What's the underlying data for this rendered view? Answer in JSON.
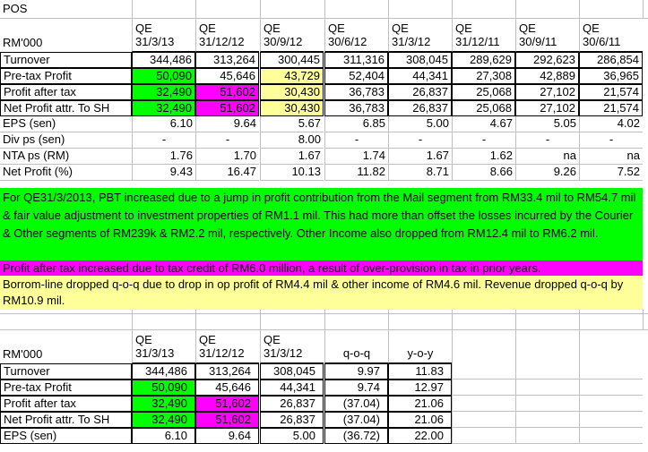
{
  "title": "POS",
  "top_table": {
    "unit_label": "RM'000",
    "columns": [
      {
        "line1": "QE",
        "line2": "31/3/13"
      },
      {
        "line1": "QE",
        "line2": "31/12/12"
      },
      {
        "line1": "QE",
        "line2": "30/9/12"
      },
      {
        "line1": "QE",
        "line2": "30/6/12"
      },
      {
        "line1": "QE",
        "line2": "31/3/12"
      },
      {
        "line1": "QE",
        "line2": "31/12/11"
      },
      {
        "line1": "QE",
        "line2": "30/9/11"
      },
      {
        "line1": "QE",
        "line2": "30/6/11"
      }
    ],
    "rows": [
      {
        "label": "Turnover",
        "values": [
          "344,486",
          "313,264",
          "300,445",
          "311,316",
          "308,045",
          "289,629",
          "292,623",
          "286,854"
        ]
      },
      {
        "label": "Pre-tax Profit",
        "values": [
          "50,090",
          "45,646",
          "43,729",
          "52,404",
          "44,341",
          "27,308",
          "42,889",
          "36,965"
        ]
      },
      {
        "label": "Profit after tax",
        "values": [
          "32,490",
          "51,602",
          "30,430",
          "36,783",
          "26,837",
          "25,068",
          "27,102",
          "21,574"
        ]
      },
      {
        "label": "Net Profit attr. To SH",
        "values": [
          "32,490",
          "51,602",
          "30,430",
          "36,783",
          "26,837",
          "25,068",
          "27,102",
          "21,574"
        ]
      },
      {
        "label": "EPS (sen)",
        "values": [
          "6.10",
          "9.64",
          "5.67",
          "6.85",
          "5.00",
          "4.67",
          "5.05",
          "4.02"
        ]
      },
      {
        "label": "Div ps (sen)",
        "values": [
          "-",
          "-",
          "8.00",
          "-",
          "-",
          "-",
          "-",
          "-"
        ]
      },
      {
        "label": "NTA ps (RM)",
        "values": [
          "1.76",
          "1.70",
          "1.67",
          "1.74",
          "1.67",
          "1.62",
          "na",
          "na"
        ]
      },
      {
        "label": "Net Profit (%)",
        "values": [
          "9.43",
          "16.47",
          "10.13",
          "11.82",
          "8.71",
          "8.66",
          "9.26",
          "7.52"
        ]
      }
    ]
  },
  "notes": {
    "green": "For QE31/3/2013, PBT increased due to a jump in profit contribution from the Mail segment from RM33.4 mil to RM54.7 mil & fair value adjustment to investment properties of RM1.1 mil. This had more than offset the losses incurred by the Courier & Other segments of RM239k & RM2.2 mil, respectively. Other Income also dropped from RM12.4 mil to RM6.2 mil.",
    "magenta": "Profit after tax increased due to tax credit of RM6.0 million, a result of over-provision in tax in prior years.",
    "yellow": "Borrom-line dropped q-o-q due to drop in op profit of RM4.4 mil & other income of RM4.6 mil. Revenue dropped q-o-q by RM10.9 mil."
  },
  "bottom_table": {
    "unit_label": "RM'000",
    "columns": [
      {
        "line1": "QE",
        "line2": "31/3/13"
      },
      {
        "line1": "QE",
        "line2": "31/12/12"
      },
      {
        "line1": "QE",
        "line2": "31/3/12"
      },
      {
        "line1": "",
        "line2": "q-o-q"
      },
      {
        "line1": "",
        "line2": "y-o-y"
      }
    ],
    "rows": [
      {
        "label": "Turnover",
        "values": [
          "344,486",
          "313,264",
          "308,045",
          "9.97",
          "11.83"
        ]
      },
      {
        "label": "Pre-tax Profit",
        "values": [
          "50,090",
          "45,646",
          "44,341",
          "9.74",
          "12.97"
        ]
      },
      {
        "label": "Profit after tax",
        "values": [
          "32,490",
          "51,602",
          "26,837",
          "(37.04)",
          "21.06"
        ]
      },
      {
        "label": "Net Profit attr. To SH",
        "values": [
          "32,490",
          "51,602",
          "26,837",
          "(37.04)",
          "21.06"
        ]
      },
      {
        "label": "EPS (sen)",
        "values": [
          "6.10",
          "9.64",
          "5.00",
          "(36.72)",
          "22.00"
        ]
      }
    ]
  },
  "colors": {
    "green": "#00ff00",
    "magenta": "#ff00ff",
    "yellow": "#ffff99"
  }
}
